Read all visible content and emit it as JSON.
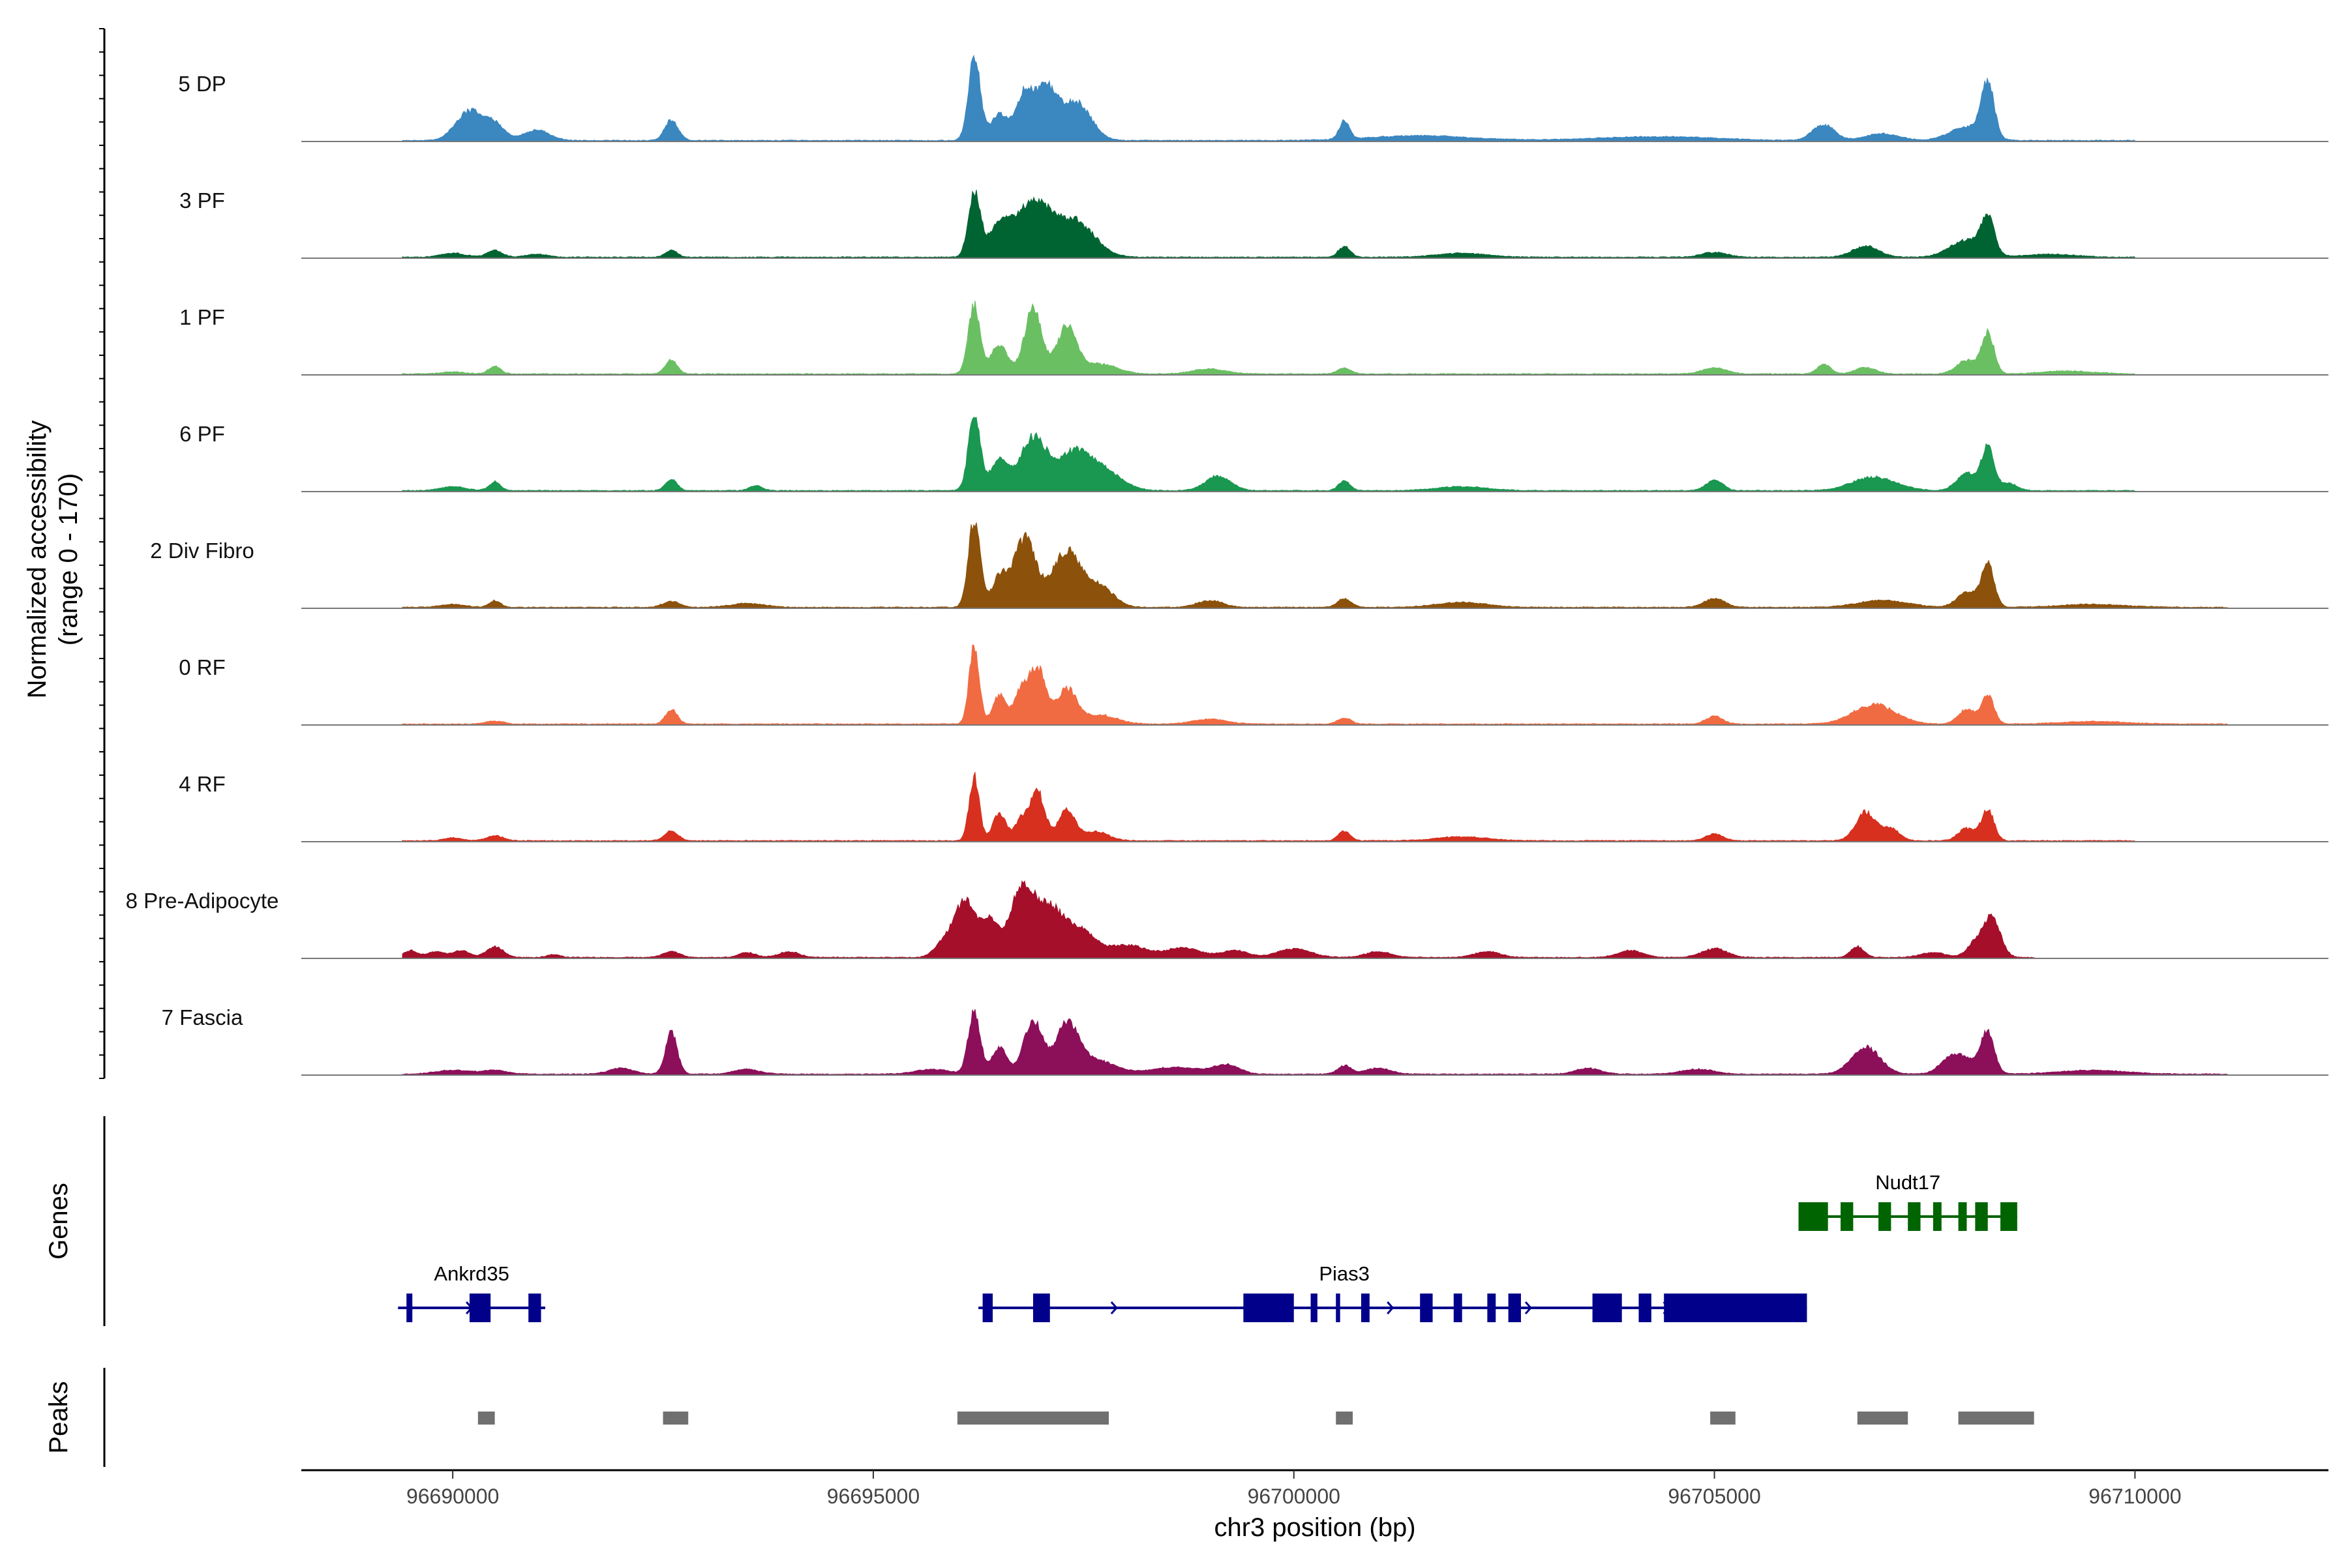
{
  "chart_data": {
    "type": "area",
    "title": "",
    "xlabel": "chr3 position (bp)",
    "xlim": [
      96688200,
      96712300
    ],
    "xticks": [
      96690000,
      96695000,
      96700000,
      96705000,
      96710000
    ],
    "xtick_labels": [
      "96690000",
      "96695000",
      "96700000",
      "96705000",
      "96710000"
    ],
    "coverage_ylabel": [
      "Normalized accessibility",
      "(range 0 - 170)"
    ],
    "ylim": [
      0,
      170
    ],
    "tracks": [
      {
        "name": "5 DP",
        "color": "#3B87C0",
        "start": 96689400,
        "end": 96710000,
        "peaks": [
          [
            96690200,
            60,
            160
          ],
          [
            96690500,
            30,
            120
          ],
          [
            96691000,
            22,
            150
          ],
          [
            96692600,
            42,
            80
          ],
          [
            96696200,
            170,
            70
          ],
          [
            96696500,
            52,
            110
          ],
          [
            96696800,
            95,
            100
          ],
          [
            96697050,
            100,
            120
          ],
          [
            96697400,
            80,
            180
          ],
          [
            96700600,
            38,
            60
          ],
          [
            96701500,
            10,
            600
          ],
          [
            96704300,
            8,
            700
          ],
          [
            96706300,
            32,
            130
          ],
          [
            96707000,
            14,
            200
          ],
          [
            96708250,
            110,
            75
          ],
          [
            96708000,
            28,
            200
          ]
        ]
      },
      {
        "name": "3 PF",
        "color": "#006432",
        "start": 96689400,
        "end": 96710000,
        "peaks": [
          [
            96690000,
            8,
            150
          ],
          [
            96690500,
            14,
            90
          ],
          [
            96691000,
            6,
            120
          ],
          [
            96692600,
            14,
            70
          ],
          [
            96696200,
            130,
            70
          ],
          [
            96696500,
            62,
            130
          ],
          [
            96696900,
            110,
            200
          ],
          [
            96697400,
            72,
            230
          ],
          [
            96700600,
            22,
            70
          ],
          [
            96702000,
            8,
            300
          ],
          [
            96705000,
            10,
            150
          ],
          [
            96706800,
            22,
            160
          ],
          [
            96708250,
            75,
            75
          ],
          [
            96708000,
            35,
            200
          ],
          [
            96709000,
            6,
            300
          ]
        ]
      },
      {
        "name": "1 PF",
        "color": "#6BBF63",
        "start": 96689400,
        "end": 96710000,
        "peaks": [
          [
            96690500,
            16,
            70
          ],
          [
            96690000,
            4,
            150
          ],
          [
            96692600,
            30,
            70
          ],
          [
            96696200,
            140,
            70
          ],
          [
            96696500,
            60,
            100
          ],
          [
            96696900,
            135,
            100
          ],
          [
            96697300,
            95,
            120
          ],
          [
            96697700,
            20,
            200
          ],
          [
            96699000,
            10,
            200
          ],
          [
            96700600,
            12,
            80
          ],
          [
            96705000,
            12,
            150
          ],
          [
            96706300,
            20,
            80
          ],
          [
            96706800,
            14,
            120
          ],
          [
            96708250,
            82,
            75
          ],
          [
            96708000,
            28,
            120
          ],
          [
            96709200,
            6,
            300
          ]
        ]
      },
      {
        "name": "6 PF",
        "color": "#1A9750",
        "start": 96689400,
        "end": 96710000,
        "peaks": [
          [
            96690500,
            18,
            70
          ],
          [
            96690000,
            8,
            150
          ],
          [
            96692600,
            22,
            70
          ],
          [
            96693600,
            10,
            80
          ],
          [
            96696200,
            155,
            70
          ],
          [
            96696500,
            60,
            110
          ],
          [
            96696900,
            105,
            150
          ],
          [
            96697400,
            80,
            220
          ],
          [
            96697800,
            28,
            200
          ],
          [
            96699100,
            30,
            150
          ],
          [
            96700600,
            20,
            70
          ],
          [
            96702000,
            8,
            300
          ],
          [
            96705000,
            22,
            100
          ],
          [
            96706900,
            28,
            260
          ],
          [
            96708250,
            88,
            75
          ],
          [
            96708000,
            35,
            120
          ],
          [
            96708500,
            15,
            100
          ]
        ]
      },
      {
        "name": "2 Div Fibro",
        "color": "#8C510A",
        "start": 96689400,
        "end": 96711100,
        "peaks": [
          [
            96690500,
            14,
            70
          ],
          [
            96690000,
            6,
            150
          ],
          [
            96692600,
            12,
            100
          ],
          [
            96693500,
            8,
            200
          ],
          [
            96696200,
            180,
            70
          ],
          [
            96696500,
            60,
            90
          ],
          [
            96696800,
            140,
            130
          ],
          [
            96697300,
            115,
            170
          ],
          [
            96697700,
            40,
            160
          ],
          [
            96699000,
            14,
            150
          ],
          [
            96700600,
            18,
            80
          ],
          [
            96702000,
            10,
            300
          ],
          [
            96705000,
            18,
            120
          ],
          [
            96707000,
            14,
            300
          ],
          [
            96708250,
            92,
            75
          ],
          [
            96708000,
            30,
            120
          ],
          [
            96709500,
            6,
            400
          ]
        ]
      },
      {
        "name": "0 RF",
        "color": "#F16B42",
        "start": 96689400,
        "end": 96711100,
        "peaks": [
          [
            96690500,
            6,
            100
          ],
          [
            96692600,
            30,
            70
          ],
          [
            96696200,
            160,
            60
          ],
          [
            96696500,
            60,
            80
          ],
          [
            96696750,
            60,
            80
          ],
          [
            96696950,
            115,
            100
          ],
          [
            96697300,
            70,
            120
          ],
          [
            96697700,
            18,
            200
          ],
          [
            96699000,
            10,
            200
          ],
          [
            96700600,
            12,
            80
          ],
          [
            96705000,
            16,
            100
          ],
          [
            96706900,
            40,
            250
          ],
          [
            96708250,
            58,
            75
          ],
          [
            96708000,
            30,
            100
          ],
          [
            96709500,
            5,
            400
          ]
        ]
      },
      {
        "name": "4 RF",
        "color": "#D7301F",
        "start": 96689400,
        "end": 96710000,
        "peaks": [
          [
            96690500,
            10,
            100
          ],
          [
            96690000,
            6,
            100
          ],
          [
            96692600,
            20,
            80
          ],
          [
            96696200,
            130,
            60
          ],
          [
            96696500,
            55,
            80
          ],
          [
            96696750,
            40,
            70
          ],
          [
            96696950,
            100,
            90
          ],
          [
            96697300,
            62,
            100
          ],
          [
            96697650,
            18,
            150
          ],
          [
            96700600,
            20,
            70
          ],
          [
            96702000,
            8,
            300
          ],
          [
            96705000,
            14,
            100
          ],
          [
            96706800,
            58,
            120
          ],
          [
            96707100,
            25,
            100
          ],
          [
            96708250,
            62,
            75
          ],
          [
            96708000,
            25,
            100
          ]
        ]
      },
      {
        "name": "8 Pre-Adipocyte",
        "color": "#A50F2A",
        "start": 96689400,
        "end": 96708800,
        "peaks": [
          [
            96689500,
            14,
            80
          ],
          [
            96689800,
            12,
            100
          ],
          [
            96690100,
            14,
            100
          ],
          [
            96690500,
            22,
            100
          ],
          [
            96691200,
            6,
            80
          ],
          [
            96692600,
            12,
            100
          ],
          [
            96693500,
            10,
            100
          ],
          [
            96694000,
            12,
            120
          ],
          [
            96695800,
            18,
            100
          ],
          [
            96696100,
            120,
            150
          ],
          [
            96696400,
            60,
            80
          ],
          [
            96696750,
            120,
            150
          ],
          [
            96697100,
            100,
            200
          ],
          [
            96697500,
            42,
            150
          ],
          [
            96698000,
            25,
            250
          ],
          [
            96698700,
            20,
            200
          ],
          [
            96699300,
            14,
            150
          ],
          [
            96700000,
            18,
            200
          ],
          [
            96701000,
            12,
            150
          ],
          [
            96702300,
            12,
            150
          ],
          [
            96704000,
            14,
            150
          ],
          [
            96705000,
            18,
            150
          ],
          [
            96706700,
            22,
            80
          ],
          [
            96707600,
            10,
            150
          ],
          [
            96708300,
            80,
            100
          ],
          [
            96708100,
            28,
            100
          ]
        ]
      },
      {
        "name": "7 Fascia",
        "color": "#8C0F5A",
        "start": 96689400,
        "end": 96711100,
        "peaks": [
          [
            96690000,
            8,
            200
          ],
          [
            96690500,
            8,
            150
          ],
          [
            96692000,
            12,
            150
          ],
          [
            96692600,
            85,
            70
          ],
          [
            96693500,
            10,
            150
          ],
          [
            96695700,
            10,
            200
          ],
          [
            96696200,
            130,
            70
          ],
          [
            96696500,
            55,
            90
          ],
          [
            96696900,
            110,
            110
          ],
          [
            96697300,
            95,
            130
          ],
          [
            96697600,
            30,
            250
          ],
          [
            96698600,
            14,
            300
          ],
          [
            96699200,
            18,
            150
          ],
          [
            96700600,
            18,
            80
          ],
          [
            96701000,
            12,
            150
          ],
          [
            96703500,
            12,
            150
          ],
          [
            96704800,
            10,
            200
          ],
          [
            96706800,
            55,
            170
          ],
          [
            96707800,
            20,
            120
          ],
          [
            96708250,
            75,
            75
          ],
          [
            96708000,
            30,
            200
          ],
          [
            96709500,
            8,
            400
          ]
        ]
      }
    ],
    "genes_ylabel": "Genes",
    "genes": [
      {
        "name": "Nudt17",
        "color": "#006400",
        "strand": "-",
        "row": 0,
        "start": 96706000,
        "end": 96708600,
        "exons": [
          [
            96706000,
            96706350
          ],
          [
            96706500,
            96706650
          ],
          [
            96706950,
            96707100
          ],
          [
            96707300,
            96707450
          ],
          [
            96707600,
            96707700
          ],
          [
            96707900,
            96708000
          ],
          [
            96708100,
            96708250
          ],
          [
            96708400,
            96708600
          ]
        ]
      },
      {
        "name": "Ankrd35",
        "color": "#00008B",
        "strand": "+",
        "row": 1,
        "start": 96689350,
        "end": 96691100,
        "exons": [
          [
            96689450,
            96689520
          ],
          [
            96690200,
            96690450
          ],
          [
            96690900,
            96691050
          ]
        ]
      },
      {
        "name": "Pias3",
        "color": "#00008B",
        "strand": "+",
        "row": 1,
        "start": 96696250,
        "end": 96706100,
        "exons": [
          [
            96696300,
            96696420
          ],
          [
            96696900,
            96697100
          ],
          [
            96699400,
            96700000
          ],
          [
            96700200,
            96700280
          ],
          [
            96700500,
            96700550
          ],
          [
            96700800,
            96700900
          ],
          [
            96701500,
            96701650
          ],
          [
            96701900,
            96702000
          ],
          [
            96702300,
            96702400
          ],
          [
            96702550,
            96702700
          ],
          [
            96703550,
            96703900
          ],
          [
            96704100,
            96704250
          ],
          [
            96704400,
            96706100
          ]
        ]
      }
    ],
    "peaks_ylabel": "Peaks",
    "peak_regions": [
      [
        96690300,
        96690500
      ],
      [
        96692500,
        96692800
      ],
      [
        96696000,
        96697800
      ],
      [
        96700500,
        96700700
      ],
      [
        96704950,
        96705250
      ],
      [
        96706700,
        96707300
      ],
      [
        96707900,
        96708800
      ]
    ]
  }
}
